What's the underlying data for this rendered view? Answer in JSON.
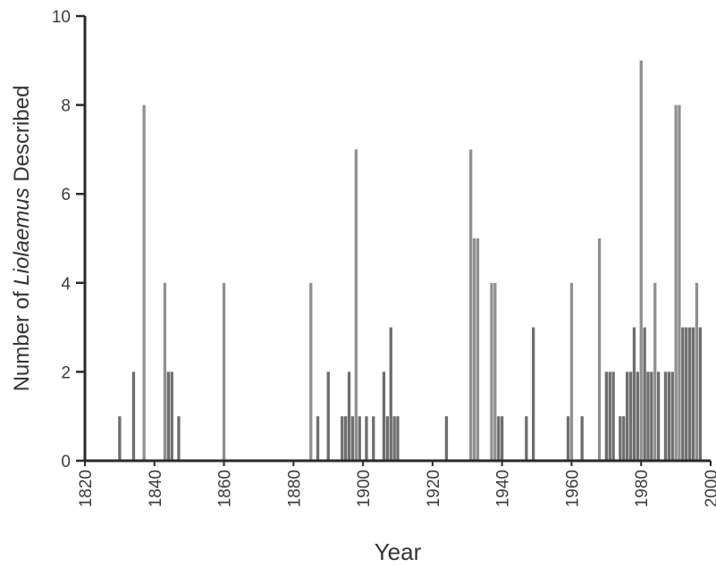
{
  "chart_data": {
    "type": "bar",
    "xlabel": "Year",
    "ylabel_parts": [
      "Number of ",
      "Liolaemus",
      " Described"
    ],
    "xlim": [
      1820,
      2000
    ],
    "ylim": [
      0,
      10
    ],
    "x_ticks": [
      1820,
      1840,
      1860,
      1880,
      1900,
      1920,
      1940,
      1960,
      1980,
      2000
    ],
    "y_ticks": [
      0,
      2,
      4,
      6,
      8,
      10
    ],
    "grid": false,
    "bar_color": "#7d7d7d",
    "dark_bar_color": "#555555",
    "bars": [
      {
        "x": 1830,
        "y": 1
      },
      {
        "x": 1834,
        "y": 2
      },
      {
        "x": 1837,
        "y": 8
      },
      {
        "x": 1843,
        "y": 4
      },
      {
        "x": 1844,
        "y": 2
      },
      {
        "x": 1845,
        "y": 2
      },
      {
        "x": 1847,
        "y": 1
      },
      {
        "x": 1860,
        "y": 4
      },
      {
        "x": 1885,
        "y": 4
      },
      {
        "x": 1887,
        "y": 1
      },
      {
        "x": 1890,
        "y": 2
      },
      {
        "x": 1894,
        "y": 1
      },
      {
        "x": 1895,
        "y": 1
      },
      {
        "x": 1896,
        "y": 2
      },
      {
        "x": 1897,
        "y": 1
      },
      {
        "x": 1898,
        "y": 7
      },
      {
        "x": 1899,
        "y": 1
      },
      {
        "x": 1901,
        "y": 1
      },
      {
        "x": 1903,
        "y": 1
      },
      {
        "x": 1906,
        "y": 2
      },
      {
        "x": 1907,
        "y": 1
      },
      {
        "x": 1908,
        "y": 3
      },
      {
        "x": 1909,
        "y": 1
      },
      {
        "x": 1910,
        "y": 1
      },
      {
        "x": 1924,
        "y": 1
      },
      {
        "x": 1931,
        "y": 7
      },
      {
        "x": 1932,
        "y": 5
      },
      {
        "x": 1933,
        "y": 5
      },
      {
        "x": 1937,
        "y": 4
      },
      {
        "x": 1938,
        "y": 4
      },
      {
        "x": 1939,
        "y": 1
      },
      {
        "x": 1940,
        "y": 1
      },
      {
        "x": 1947,
        "y": 1
      },
      {
        "x": 1949,
        "y": 3
      },
      {
        "x": 1959,
        "y": 1
      },
      {
        "x": 1960,
        "y": 4
      },
      {
        "x": 1963,
        "y": 1
      },
      {
        "x": 1968,
        "y": 5
      },
      {
        "x": 1970,
        "y": 2
      },
      {
        "x": 1971,
        "y": 2
      },
      {
        "x": 1972,
        "y": 2
      },
      {
        "x": 1974,
        "y": 1
      },
      {
        "x": 1975,
        "y": 1
      },
      {
        "x": 1976,
        "y": 2
      },
      {
        "x": 1977,
        "y": 2
      },
      {
        "x": 1978,
        "y": 3
      },
      {
        "x": 1979,
        "y": 2
      },
      {
        "x": 1980,
        "y": 9
      },
      {
        "x": 1981,
        "y": 3
      },
      {
        "x": 1982,
        "y": 2
      },
      {
        "x": 1983,
        "y": 2
      },
      {
        "x": 1984,
        "y": 4
      },
      {
        "x": 1985,
        "y": 2
      },
      {
        "x": 1987,
        "y": 2
      },
      {
        "x": 1988,
        "y": 2
      },
      {
        "x": 1989,
        "y": 2
      },
      {
        "x": 1990,
        "y": 8
      },
      {
        "x": 1991,
        "y": 8
      },
      {
        "x": 1992,
        "y": 3
      },
      {
        "x": 1993,
        "y": 3
      },
      {
        "x": 1994,
        "y": 3
      },
      {
        "x": 1995,
        "y": 3
      },
      {
        "x": 1996,
        "y": 4
      },
      {
        "x": 1997,
        "y": 3
      }
    ]
  }
}
